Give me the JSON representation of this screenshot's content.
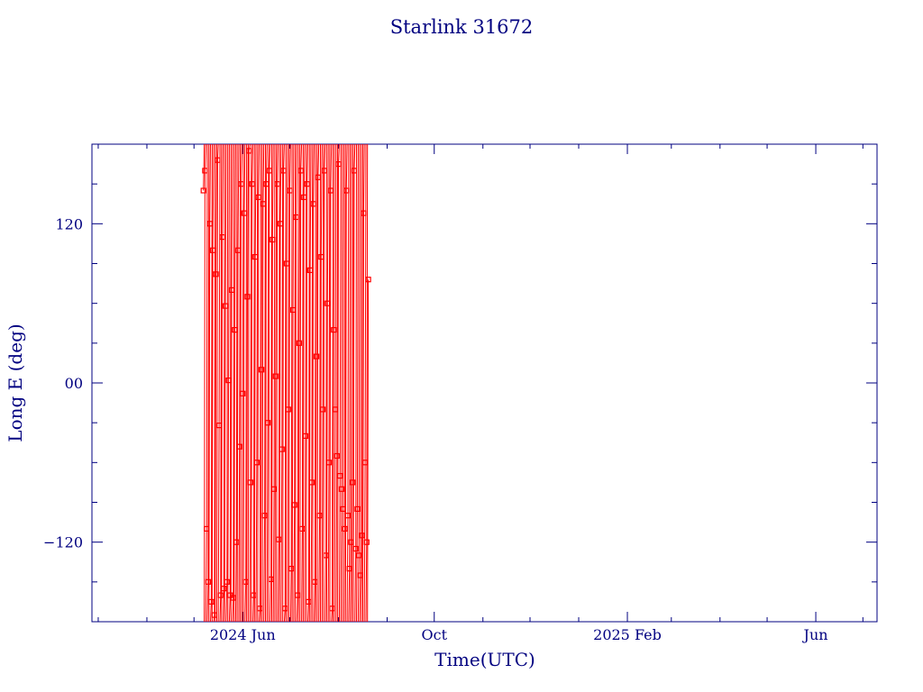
{
  "colors": {
    "axis": "#000080",
    "text": "#000080",
    "series": "#ff0000",
    "background": "#ffffff"
  },
  "chart_data": {
    "type": "line",
    "title": "Starlink 31672",
    "xlabel": "Time(UTC)",
    "ylabel": "Long E (deg)",
    "xaxis": {
      "unit": "date",
      "range": [
        "2024-02-26",
        "2025-07-10"
      ],
      "ticks": [
        {
          "date": "2024-06-01",
          "label": "2024 Jun"
        },
        {
          "date": "2024-10-01",
          "label": "Oct"
        },
        {
          "date": "2025-02-01",
          "label": "2025 Feb"
        },
        {
          "date": "2025-06-01",
          "label": "Jun"
        }
      ],
      "minor_tick_dates": [
        "2024-03-01",
        "2024-04-01",
        "2024-05-01",
        "2024-07-01",
        "2024-08-01",
        "2024-09-01",
        "2024-11-01",
        "2024-12-01",
        "2025-01-01",
        "2025-03-01",
        "2025-04-01",
        "2025-05-01",
        "2025-07-01"
      ]
    },
    "yaxis": {
      "range": [
        -180,
        180
      ],
      "ticks": [
        {
          "value": -120,
          "label": "−120"
        },
        {
          "value": 0,
          "label": "00"
        },
        {
          "value": 120,
          "label": "120"
        }
      ],
      "minor_step": 30
    },
    "grid": false,
    "marker": "square",
    "series": [
      {
        "name": "",
        "date_range": [
          "2024-05-07",
          "2024-08-20"
        ],
        "description_points": [
          [
            "2024-05-07",
            145
          ],
          [
            "2024-05-08",
            160
          ],
          [
            "2024-05-09",
            -110
          ],
          [
            "2024-05-10",
            -150
          ],
          [
            "2024-05-11",
            120
          ],
          [
            "2024-05-12",
            -165
          ],
          [
            "2024-05-13",
            100
          ],
          [
            "2024-05-14",
            -175
          ],
          [
            "2024-05-15",
            82
          ],
          [
            "2024-05-16",
            168
          ],
          [
            "2024-05-17",
            -32
          ],
          [
            "2024-05-18",
            -160
          ],
          [
            "2024-05-19",
            110
          ],
          [
            "2024-05-20",
            -155
          ],
          [
            "2024-05-21",
            58
          ],
          [
            "2024-05-22",
            -150
          ],
          [
            "2024-05-23",
            2
          ],
          [
            "2024-05-24",
            -160
          ],
          [
            "2024-05-25",
            70
          ],
          [
            "2024-05-26",
            -162
          ],
          [
            "2024-05-27",
            40
          ],
          [
            "2024-05-28",
            -120
          ],
          [
            "2024-05-29",
            100
          ],
          [
            "2024-05-30",
            -48
          ],
          [
            "2024-05-31",
            150
          ],
          [
            "2024-06-01",
            -8
          ],
          [
            "2024-06-02",
            128
          ],
          [
            "2024-06-03",
            -150
          ],
          [
            "2024-06-04",
            65
          ],
          [
            "2024-06-05",
            175
          ],
          [
            "2024-06-06",
            -75
          ],
          [
            "2024-06-07",
            150
          ],
          [
            "2024-06-08",
            -160
          ],
          [
            "2024-06-09",
            95
          ],
          [
            "2024-06-10",
            -60
          ],
          [
            "2024-06-11",
            140
          ],
          [
            "2024-06-12",
            -170
          ],
          [
            "2024-06-13",
            10
          ],
          [
            "2024-06-14",
            135
          ],
          [
            "2024-06-15",
            -100
          ],
          [
            "2024-06-16",
            150
          ],
          [
            "2024-06-17",
            -30
          ],
          [
            "2024-06-18",
            160
          ],
          [
            "2024-06-19",
            -148
          ],
          [
            "2024-06-20",
            108
          ],
          [
            "2024-06-21",
            -80
          ],
          [
            "2024-06-22",
            5
          ],
          [
            "2024-06-23",
            150
          ],
          [
            "2024-06-24",
            -118
          ],
          [
            "2024-06-25",
            120
          ],
          [
            "2024-06-26",
            -50
          ],
          [
            "2024-06-27",
            160
          ],
          [
            "2024-06-28",
            -170
          ],
          [
            "2024-06-29",
            90
          ],
          [
            "2024-06-30",
            -20
          ],
          [
            "2024-07-01",
            145
          ],
          [
            "2024-07-02",
            -140
          ],
          [
            "2024-07-03",
            55
          ],
          [
            "2024-07-04",
            -92
          ],
          [
            "2024-07-05",
            125
          ],
          [
            "2024-07-06",
            -160
          ],
          [
            "2024-07-07",
            30
          ],
          [
            "2024-07-08",
            160
          ],
          [
            "2024-07-09",
            -110
          ],
          [
            "2024-07-10",
            140
          ],
          [
            "2024-07-11",
            -40
          ],
          [
            "2024-07-12",
            150
          ],
          [
            "2024-07-13",
            -165
          ],
          [
            "2024-07-14",
            85
          ],
          [
            "2024-07-15",
            -75
          ],
          [
            "2024-07-16",
            135
          ],
          [
            "2024-07-17",
            -150
          ],
          [
            "2024-07-18",
            20
          ],
          [
            "2024-07-19",
            155
          ],
          [
            "2024-07-20",
            -100
          ],
          [
            "2024-07-21",
            95
          ],
          [
            "2024-07-22",
            -20
          ],
          [
            "2024-07-23",
            160
          ],
          [
            "2024-07-24",
            -130
          ],
          [
            "2024-07-25",
            60
          ],
          [
            "2024-07-26",
            -60
          ],
          [
            "2024-07-27",
            145
          ],
          [
            "2024-07-28",
            -170
          ],
          [
            "2024-07-29",
            40
          ],
          [
            "2024-07-30",
            -20
          ],
          [
            "2024-07-31",
            -55
          ],
          [
            "2024-08-01",
            165
          ],
          [
            "2024-08-02",
            -70
          ],
          [
            "2024-08-03",
            -80
          ],
          [
            "2024-08-04",
            -95
          ],
          [
            "2024-08-05",
            -110
          ],
          [
            "2024-08-06",
            145
          ],
          [
            "2024-08-07",
            -100
          ],
          [
            "2024-08-08",
            -140
          ],
          [
            "2024-08-09",
            -120
          ],
          [
            "2024-08-10",
            -75
          ],
          [
            "2024-08-11",
            160
          ],
          [
            "2024-08-12",
            -125
          ],
          [
            "2024-08-13",
            -95
          ],
          [
            "2024-08-14",
            -130
          ],
          [
            "2024-08-15",
            -145
          ],
          [
            "2024-08-16",
            -115
          ],
          [
            "2024-08-17",
            128
          ],
          [
            "2024-08-18",
            -60
          ],
          [
            "2024-08-19",
            -120
          ],
          [
            "2024-08-20",
            78
          ]
        ]
      }
    ]
  }
}
